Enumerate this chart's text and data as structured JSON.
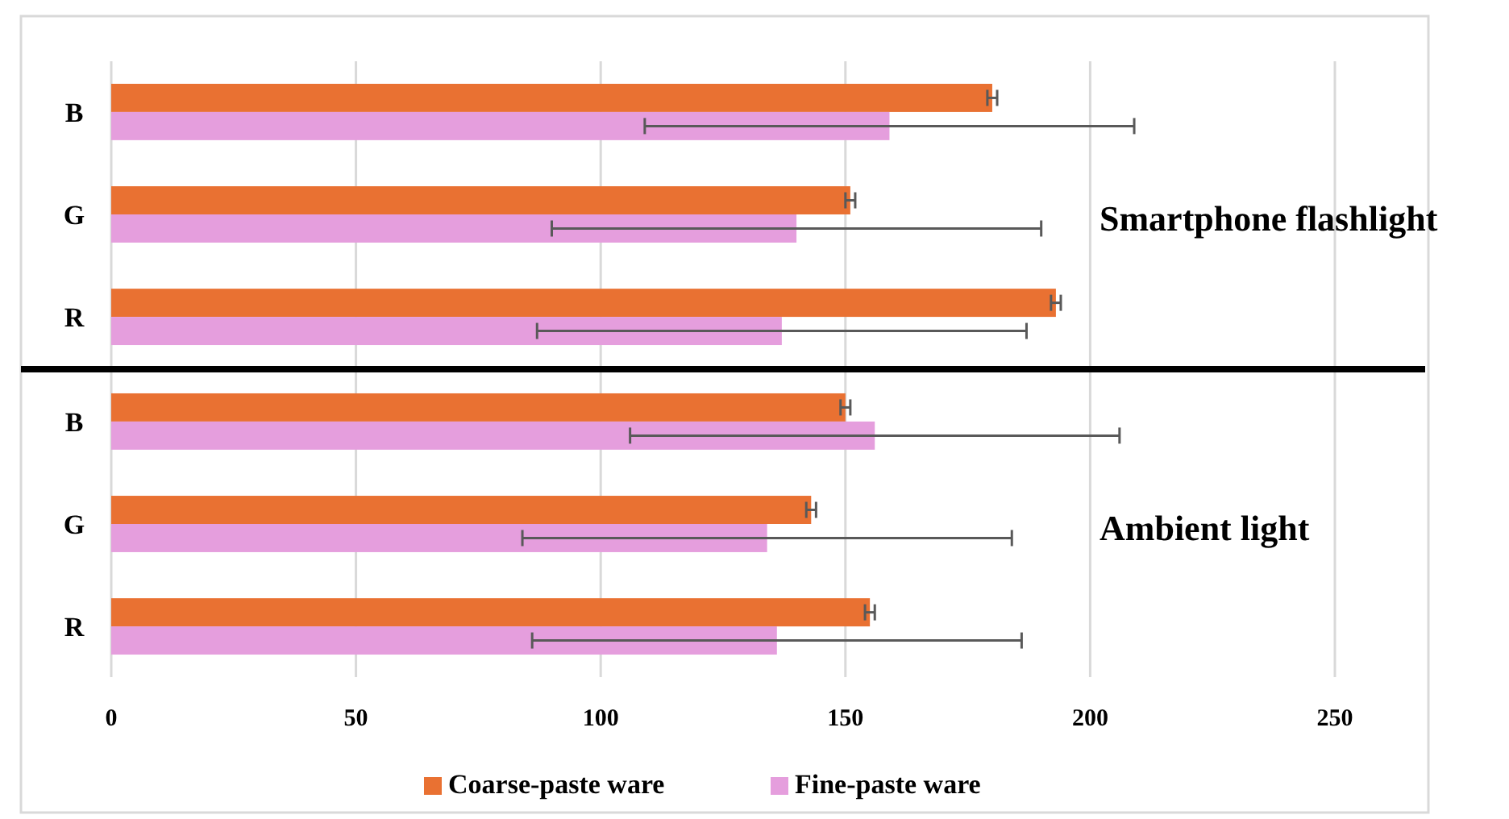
{
  "chart_data": [
    {
      "type": "bar",
      "orientation": "horizontal",
      "categories": [
        "B",
        "G",
        "R"
      ],
      "xlim": [
        0,
        270
      ],
      "xticks": [
        0,
        50,
        100,
        150,
        200,
        250
      ],
      "grid": "x",
      "tick_labels": "y",
      "annotations": [
        "Smartphone flashlight"
      ],
      "series": [
        {
          "color": "#e97132",
          "values": [
            180,
            151,
            193
          ],
          "errors": [
            1,
            1,
            1
          ]
        },
        {
          "color": "#e59edd",
          "values": [
            159,
            140,
            137
          ],
          "errors": [
            50,
            50,
            50
          ]
        }
      ]
    },
    {
      "type": "bar",
      "orientation": "horizontal",
      "categories": [
        "B",
        "G",
        "R"
      ],
      "xlim": [
        0,
        270
      ],
      "xticks": [
        0,
        50,
        100,
        150,
        200,
        250
      ],
      "grid": "x",
      "legend": "bottom",
      "annotations": [
        "Ambient light"
      ],
      "series": [
        {
          "name": "Coarse-paste ware",
          "color": "#e97132",
          "values": [
            150,
            143,
            155
          ],
          "errors": [
            1,
            1,
            1
          ]
        },
        {
          "name": "Fine-paste ware",
          "color": "#e59edd",
          "values": [
            156,
            134,
            136
          ],
          "errors": [
            50,
            50,
            50
          ]
        }
      ]
    }
  ]
}
